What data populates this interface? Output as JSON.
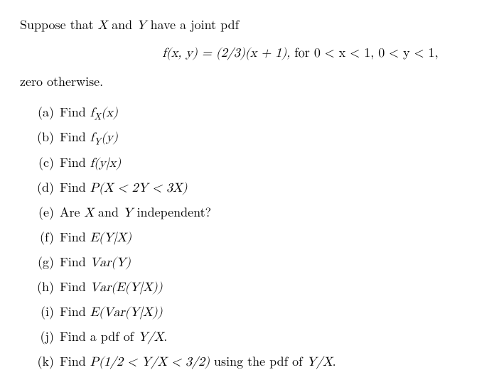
{
  "intro_prefix": "Suppose that ",
  "intro_x": "X",
  "intro_and": " and ",
  "intro_y": "Y",
  "intro_suffix": " have a joint pdf",
  "formula_lhs": "f(x, y) = (2/3)(x + 1),",
  "formula_rhs": "  for 0 < x < 1, 0 < y < 1,",
  "zero_otherwise": "zero otherwise.",
  "items": {
    "a": {
      "label": "(a)",
      "text": "Find ",
      "math": "f",
      "sub": "X",
      "math2": "(x)"
    },
    "b": {
      "label": "(b)",
      "text": "Find ",
      "math": "f",
      "sub": "Y",
      "math2": "(y)"
    },
    "c": {
      "label": "(c)",
      "text": "Find ",
      "math": "f(y|x)"
    },
    "d": {
      "label": "(d)",
      "text": "Find ",
      "math": "P(X < 2Y < 3X)"
    },
    "e": {
      "label": "(e)",
      "text1": "Are ",
      "mathX": "X",
      "text2": " and ",
      "mathY": "Y",
      "text3": " independent?"
    },
    "f": {
      "label": "(f)",
      "text": "Find ",
      "math": "E(Y|X)"
    },
    "g": {
      "label": "(g)",
      "text": "Find ",
      "math": "Var(Y)"
    },
    "h": {
      "label": "(h)",
      "text": "Find ",
      "math": "Var(E(Y|X))"
    },
    "i": {
      "label": "(i)",
      "text": "Find ",
      "math": "E(Var(Y|X))"
    },
    "j": {
      "label": "(j)",
      "text1": "Find a pdf of ",
      "math": "Y/X",
      "text2": "."
    },
    "k": {
      "label": "(k)",
      "text1": "Find ",
      "math1": "P(1/2 < Y/X < 3/2)",
      "text2": " using the pdf of ",
      "math2": "Y/X",
      "text3": "."
    }
  }
}
